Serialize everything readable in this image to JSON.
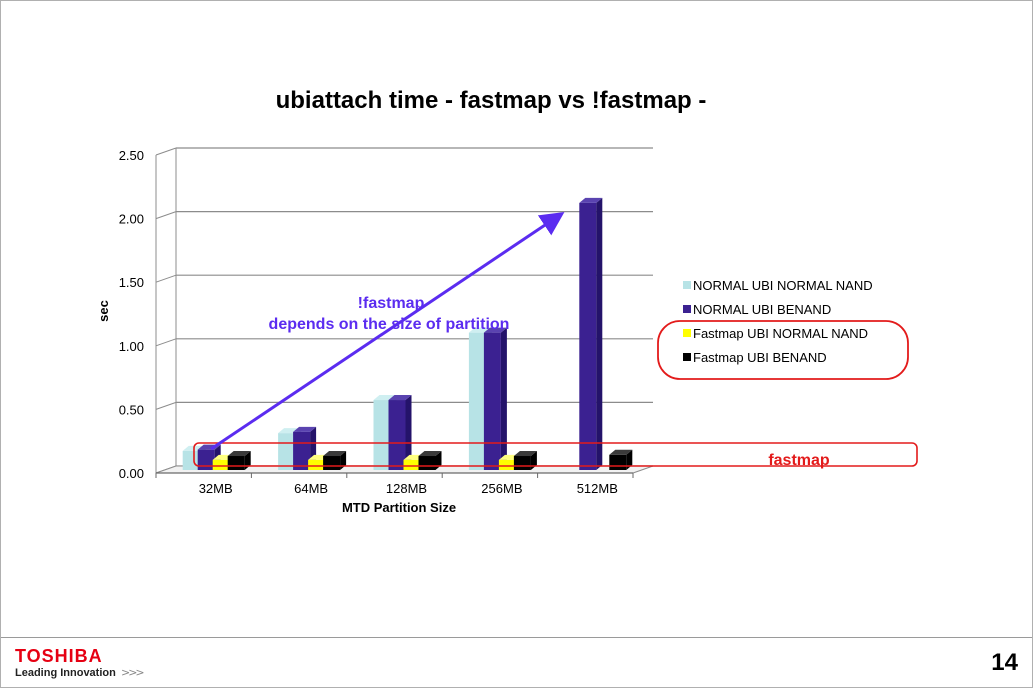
{
  "slide": {
    "page_number": "14",
    "brand": {
      "name": "TOSHIBA",
      "tagline": "Leading Innovation",
      "tagline_mark": ">>>"
    }
  },
  "annotations": {
    "arrow_label_line1": "!fastmap",
    "arrow_label_line2": "depends on the size of partition",
    "fastmap_box_label": "fastmap"
  },
  "colors": {
    "normal_nand": "#b7e3e6",
    "normal_benand": "#3b2191",
    "fastmap_nand": "#ffff00",
    "fastmap_benand": "#000000",
    "arrow": "#5b2cf0",
    "highlight": "#e31b1b",
    "fastmap_label": "#e31b1b"
  },
  "chart_data": {
    "type": "bar",
    "title": "ubiattach time - fastmap vs !fastmap -",
    "xlabel": "MTD Partition Size",
    "ylabel": "sec",
    "categories": [
      "32MB",
      "64MB",
      "128MB",
      "256MB",
      "512MB"
    ],
    "ylim": [
      0,
      2.5
    ],
    "yticks": [
      "0.00",
      "0.50",
      "1.00",
      "1.50",
      "2.00",
      "2.50"
    ],
    "grid": true,
    "legend_position": "right",
    "series": [
      {
        "name": "NORMAL UBI NORMAL NAND",
        "values": [
          0.15,
          0.29,
          0.55,
          1.08,
          null
        ]
      },
      {
        "name": "NORMAL UBI BENAND",
        "values": [
          0.16,
          0.3,
          0.55,
          1.08,
          2.1
        ]
      },
      {
        "name": "Fastmap UBI NORMAL NAND",
        "values": [
          0.08,
          0.08,
          0.08,
          0.08,
          null
        ]
      },
      {
        "name": "Fastmap UBI BENAND",
        "values": [
          0.11,
          0.11,
          0.11,
          0.11,
          0.12
        ]
      }
    ]
  }
}
